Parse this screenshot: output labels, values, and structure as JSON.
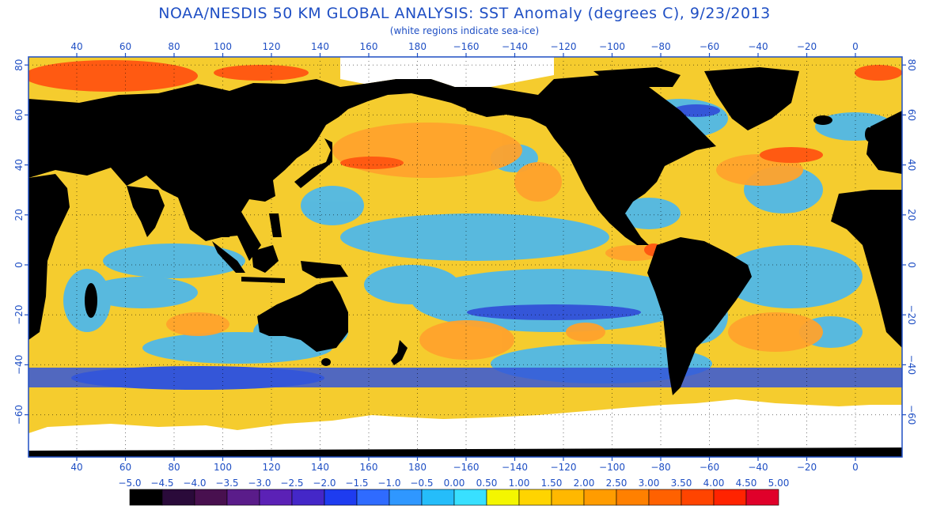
{
  "title": "NOAA/NESDIS 50 KM GLOBAL ANALYSIS: SST Anomaly (degrees C), 9/23/2013",
  "subtitle": "(white regions indicate sea-ice)",
  "map": {
    "lon_labels": [
      "40",
      "60",
      "80",
      "100",
      "120",
      "140",
      "160",
      "180",
      "−160",
      "−140",
      "−120",
      "−100",
      "−80",
      "−60",
      "−40",
      "−20",
      "0"
    ],
    "lat_labels_left": [
      "80",
      "60",
      "40",
      "20",
      "0",
      "−20",
      "−40",
      "−60"
    ],
    "lat_labels_right": [
      "80",
      "60",
      "40",
      "20",
      "0",
      "−20",
      "−40",
      "−60"
    ]
  },
  "colorbar": {
    "labels": [
      "−5.0",
      "−4.5",
      "−4.0",
      "−3.5",
      "−3.0",
      "−2.5",
      "−2.0",
      "−1.5",
      "−1.0",
      "−0.5",
      "0.00",
      "0.50",
      "1.00",
      "1.50",
      "2.00",
      "2.50",
      "3.00",
      "3.50",
      "4.00",
      "4.50",
      "5.00"
    ],
    "colors": [
      "#000000",
      "#2a0a3a",
      "#48104f",
      "#5a1c8a",
      "#5b21b6",
      "#4427c8",
      "#1e3cf0",
      "#2f6bff",
      "#2f97ff",
      "#25bdfa",
      "#38e0ff",
      "#f4f600",
      "#ffd400",
      "#ffb800",
      "#ff9c00",
      "#ff8000",
      "#ff6100",
      "#ff4400",
      "#ff2300",
      "#e0002a"
    ]
  },
  "colors": {
    "text": "#1f4fc4",
    "frame": "#1f4fc4",
    "land": "#000000",
    "ice": "#ffffff",
    "ocean_neutral": "#f5cc2e",
    "ocean_warm": "#ffa22c",
    "ocean_cool": "#48b8f2",
    "ocean_cold": "#3456d8",
    "ocean_hot": "#ff5a12"
  }
}
